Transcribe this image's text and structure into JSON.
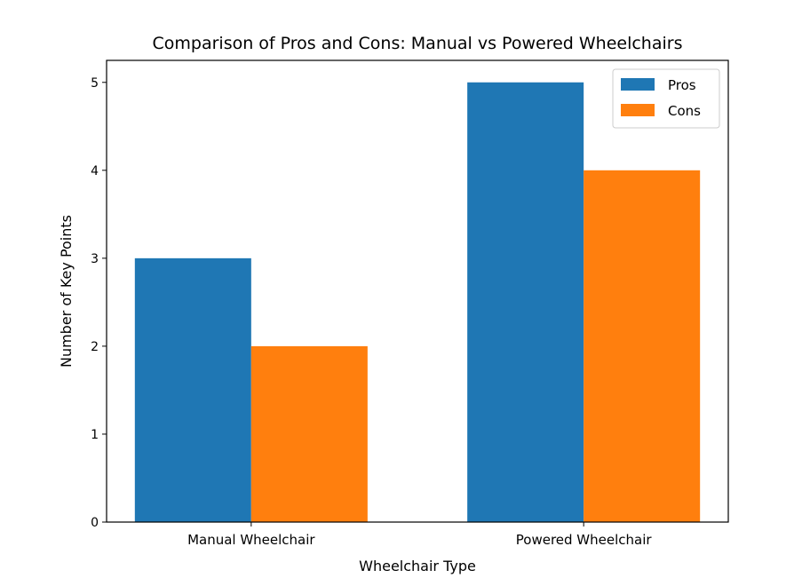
{
  "chart_data": {
    "type": "bar",
    "title": "Comparison of Pros and Cons: Manual vs Powered Wheelchairs",
    "xlabel": "Wheelchair Type",
    "ylabel": "Number of Key Points",
    "categories": [
      "Manual Wheelchair",
      "Powered Wheelchair"
    ],
    "series": [
      {
        "name": "Pros",
        "values": [
          3,
          5
        ],
        "color": "#1f77b4"
      },
      {
        "name": "Cons",
        "values": [
          2,
          4
        ],
        "color": "#ff7f0e"
      }
    ],
    "ylim": [
      0,
      5.25
    ],
    "yticks": [
      0,
      1,
      2,
      3,
      4,
      5
    ],
    "grid": false,
    "legend": "top-right"
  }
}
